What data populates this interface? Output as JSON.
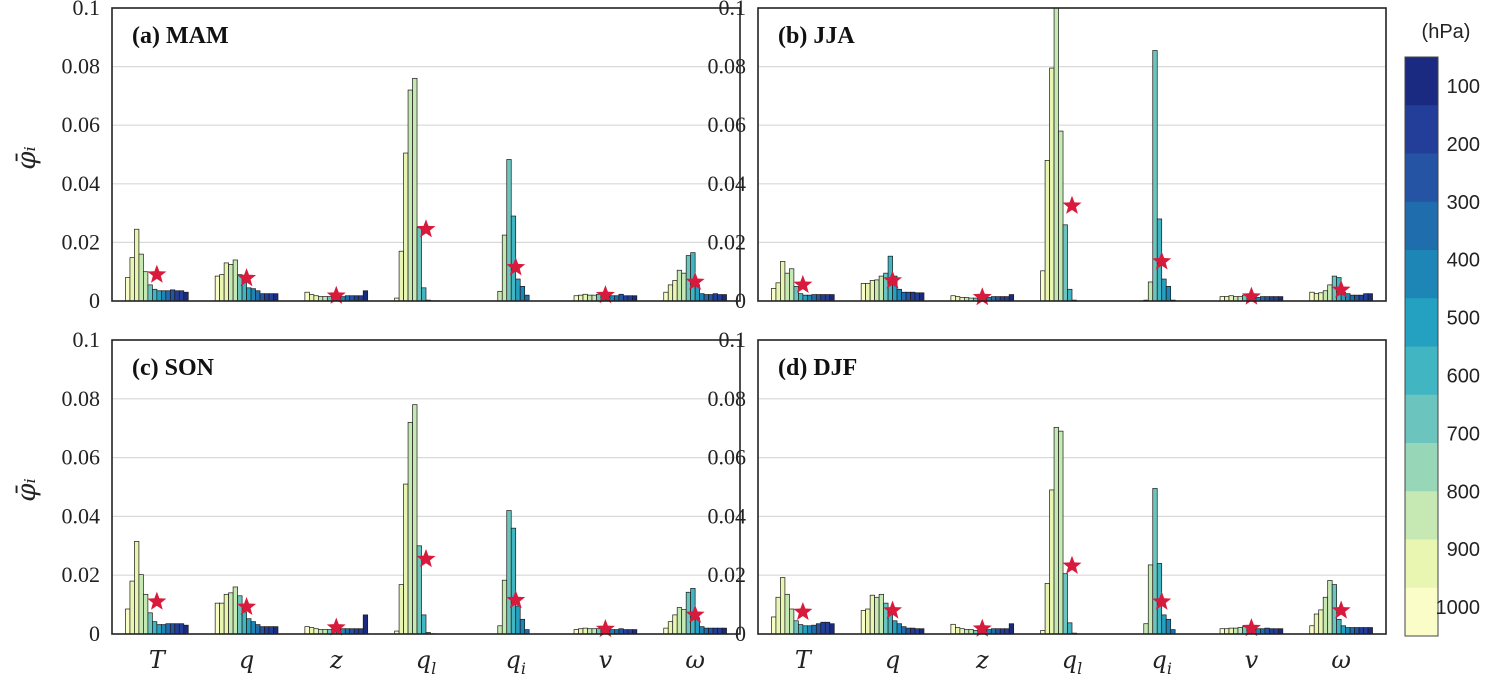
{
  "figure": {
    "ylabel": "φ̄ᵢ",
    "colorbar": {
      "unit": "(hPa)",
      "ticks": [
        "100",
        "200",
        "300",
        "400",
        "500",
        "600",
        "700",
        "800",
        "900",
        "1000"
      ],
      "colors": [
        "#1a2a80",
        "#233e98",
        "#2454a3",
        "#1f6dac",
        "#1d86b7",
        "#24a0c0",
        "#42b5c3",
        "#6bc5be",
        "#98d6b8",
        "#c6e9b4",
        "#e9f6b1",
        "#fbfdc8"
      ]
    },
    "star_color": "#d81b3c",
    "grid_color": "#d9d9d9"
  },
  "chart_data": {
    "type": "bar",
    "ylim": [
      0,
      0.1
    ],
    "yticks": [
      0,
      0.02,
      0.04,
      0.06,
      0.08,
      0.1
    ],
    "ytick_labels": [
      "0",
      "0.02",
      "0.04",
      "0.06",
      "0.08",
      "0.1"
    ],
    "categories": [
      "T",
      "q",
      "z",
      "ql",
      "qi",
      "v",
      "ω"
    ],
    "category_display": [
      {
        "base": "T",
        "sub": ""
      },
      {
        "base": "q",
        "sub": ""
      },
      {
        "base": "z",
        "sub": ""
      },
      {
        "base": "q",
        "sub": "l"
      },
      {
        "base": "q",
        "sub": "i"
      },
      {
        "base": "v",
        "sub": ""
      },
      {
        "base": "ω",
        "sub": ""
      }
    ],
    "levels_hPa": [
      1000,
      950,
      900,
      850,
      800,
      700,
      600,
      500,
      400,
      300,
      250,
      200,
      150,
      100
    ],
    "panels": [
      {
        "label": "(a) MAM",
        "series": [
          {
            "values": [
              0.008,
              0.0148,
              0.0245,
              0.016,
              0.01,
              0.0055,
              0.004,
              0.0035,
              0.0035,
              0.0035,
              0.0038,
              0.0035,
              0.0035,
              0.003
            ],
            "mean": 0.009
          },
          {
            "values": [
              0.0085,
              0.009,
              0.013,
              0.0125,
              0.014,
              0.009,
              0.0065,
              0.0045,
              0.0042,
              0.0035,
              0.0025,
              0.0025,
              0.0025,
              0.0025
            ],
            "mean": 0.0078
          },
          {
            "values": [
              0.003,
              0.0022,
              0.0018,
              0.0015,
              0.0015,
              0.0015,
              0.0018,
              0.0015,
              0.0015,
              0.0018,
              0.0018,
              0.0018,
              0.0018,
              0.0035
            ],
            "mean": 0.0018
          },
          {
            "values": [
              0.001,
              0.017,
              0.0505,
              0.072,
              0.076,
              0.025,
              0.0045,
              0.0003,
              0.0001,
              0.0001,
              0.0,
              0.0,
              0.0,
              0.0
            ],
            "mean": 0.0245
          },
          {
            "values": [
              0.0,
              0.0,
              0.0,
              0.0033,
              0.0225,
              0.0483,
              0.029,
              0.0075,
              0.005,
              0.002,
              0.0,
              0.0,
              0.0,
              0.0
            ],
            "mean": 0.0115
          },
          {
            "values": [
              0.0018,
              0.002,
              0.0023,
              0.002,
              0.002,
              0.0023,
              0.002,
              0.0018,
              0.0018,
              0.0018,
              0.0023,
              0.0018,
              0.0018,
              0.0018
            ],
            "mean": 0.002
          },
          {
            "values": [
              0.003,
              0.0055,
              0.007,
              0.0105,
              0.0095,
              0.0155,
              0.0165,
              0.0055,
              0.0025,
              0.0022,
              0.0022,
              0.0025,
              0.0022,
              0.0022
            ],
            "mean": 0.0065
          }
        ]
      },
      {
        "label": "(b) JJA",
        "series": [
          {
            "values": [
              0.0043,
              0.0062,
              0.0135,
              0.0095,
              0.011,
              0.005,
              0.0025,
              0.002,
              0.002,
              0.0022,
              0.0022,
              0.0022,
              0.0022,
              0.0022
            ],
            "mean": 0.0055
          },
          {
            "values": [
              0.006,
              0.006,
              0.007,
              0.0072,
              0.0085,
              0.0095,
              0.0153,
              0.0085,
              0.004,
              0.003,
              0.003,
              0.003,
              0.0028,
              0.0028
            ],
            "mean": 0.007
          },
          {
            "values": [
              0.0018,
              0.0015,
              0.0012,
              0.0012,
              0.001,
              0.001,
              0.0012,
              0.0012,
              0.0012,
              0.0015,
              0.0015,
              0.0015,
              0.0015,
              0.0022
            ],
            "mean": 0.0013
          },
          {
            "values": [
              0.0103,
              0.048,
              0.0795,
              0.1,
              0.058,
              0.026,
              0.004,
              0.0003,
              0.0,
              0.0,
              0.0,
              0.0,
              0.0,
              0.0
            ],
            "mean": 0.0325
          },
          {
            "values": [
              0.0,
              0.0,
              0.0,
              0.0003,
              0.0065,
              0.0855,
              0.028,
              0.0075,
              0.005,
              0.0003,
              0.0,
              0.0,
              0.0,
              0.0
            ],
            "mean": 0.0135
          },
          {
            "values": [
              0.0015,
              0.0015,
              0.0018,
              0.0015,
              0.0015,
              0.002,
              0.0015,
              0.0015,
              0.0012,
              0.0015,
              0.0015,
              0.0015,
              0.0015,
              0.0015
            ],
            "mean": 0.0015
          },
          {
            "values": [
              0.003,
              0.0025,
              0.0028,
              0.0035,
              0.0055,
              0.0085,
              0.008,
              0.003,
              0.0025,
              0.002,
              0.002,
              0.002,
              0.0025,
              0.0025
            ],
            "mean": 0.0038
          }
        ]
      },
      {
        "label": "(c) SON",
        "series": [
          {
            "values": [
              0.0085,
              0.018,
              0.0315,
              0.0202,
              0.0135,
              0.0072,
              0.0042,
              0.0032,
              0.0032,
              0.0035,
              0.0035,
              0.0035,
              0.0035,
              0.003
            ],
            "mean": 0.011
          },
          {
            "values": [
              0.0105,
              0.0105,
              0.0135,
              0.014,
              0.016,
              0.013,
              0.0075,
              0.0052,
              0.0042,
              0.0032,
              0.0025,
              0.0025,
              0.0025,
              0.0025
            ],
            "mean": 0.0092
          },
          {
            "values": [
              0.0025,
              0.0022,
              0.0018,
              0.0015,
              0.0015,
              0.0015,
              0.0018,
              0.0018,
              0.0018,
              0.0018,
              0.0018,
              0.0018,
              0.0018,
              0.0065
            ],
            "mean": 0.0022
          },
          {
            "values": [
              0.001,
              0.0168,
              0.051,
              0.072,
              0.078,
              0.03,
              0.0065,
              0.0005,
              0.0001,
              0.0,
              0.0,
              0.0,
              0.0,
              0.0
            ],
            "mean": 0.0255
          },
          {
            "values": [
              0.0,
              0.0,
              0.0,
              0.0028,
              0.0183,
              0.042,
              0.036,
              0.0095,
              0.005,
              0.0015,
              0.0,
              0.0,
              0.0,
              0.0
            ],
            "mean": 0.0115
          },
          {
            "values": [
              0.0015,
              0.0018,
              0.002,
              0.0018,
              0.0018,
              0.0018,
              0.0015,
              0.0015,
              0.0015,
              0.0015,
              0.0018,
              0.0015,
              0.0015,
              0.0015
            ],
            "mean": 0.0017
          },
          {
            "values": [
              0.002,
              0.0042,
              0.0065,
              0.009,
              0.0083,
              0.0142,
              0.0155,
              0.0055,
              0.0025,
              0.002,
              0.002,
              0.002,
              0.002,
              0.002
            ],
            "mean": 0.0065
          }
        ]
      },
      {
        "label": "(d) DJF",
        "series": [
          {
            "values": [
              0.0058,
              0.0125,
              0.0192,
              0.0135,
              0.0085,
              0.0045,
              0.0032,
              0.0028,
              0.0028,
              0.003,
              0.0035,
              0.004,
              0.004,
              0.0035
            ],
            "mean": 0.0075
          },
          {
            "values": [
              0.008,
              0.0085,
              0.0132,
              0.0125,
              0.0135,
              0.0105,
              0.0075,
              0.0045,
              0.0035,
              0.0025,
              0.002,
              0.002,
              0.0018,
              0.0018
            ],
            "mean": 0.008
          },
          {
            "values": [
              0.0033,
              0.0022,
              0.0018,
              0.0015,
              0.0015,
              0.0012,
              0.0015,
              0.0015,
              0.0015,
              0.0018,
              0.0018,
              0.0018,
              0.0018,
              0.0035
            ],
            "mean": 0.0018
          },
          {
            "values": [
              0.0012,
              0.0172,
              0.049,
              0.0703,
              0.069,
              0.0205,
              0.0038,
              0.0003,
              0.0,
              0.0,
              0.0,
              0.0,
              0.0,
              0.0
            ],
            "mean": 0.0232
          },
          {
            "values": [
              0.0,
              0.0,
              0.0,
              0.0035,
              0.0235,
              0.0495,
              0.024,
              0.0065,
              0.005,
              0.0015,
              0.0,
              0.0,
              0.0,
              0.0
            ],
            "mean": 0.011
          },
          {
            "values": [
              0.0018,
              0.0018,
              0.002,
              0.002,
              0.0022,
              0.0025,
              0.0022,
              0.002,
              0.0018,
              0.0018,
              0.002,
              0.0018,
              0.0018,
              0.0018
            ],
            "mean": 0.002
          },
          {
            "values": [
              0.0028,
              0.0068,
              0.0082,
              0.0125,
              0.0182,
              0.0168,
              0.005,
              0.0028,
              0.0022,
              0.0022,
              0.0022,
              0.0022,
              0.0022,
              0.0022
            ],
            "mean": 0.008
          }
        ]
      }
    ]
  }
}
